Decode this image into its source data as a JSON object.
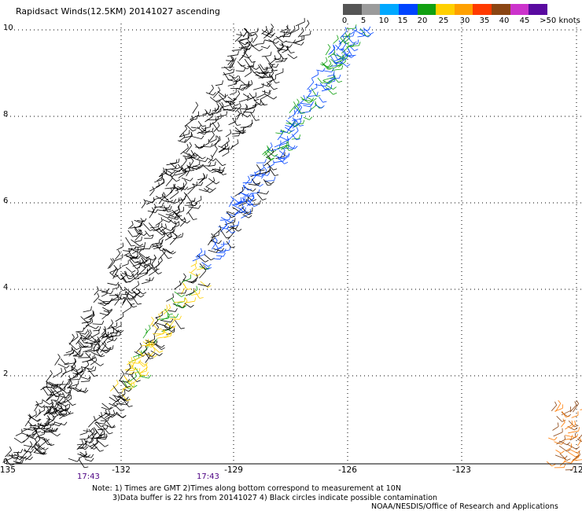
{
  "title": "Rapidsact Winds(12.5KM) 20141027 ascending",
  "colorbar": {
    "labels": [
      "0",
      "5",
      "10",
      "15",
      "20",
      "25",
      "30",
      "35",
      "40",
      "45",
      ">50 knots"
    ],
    "colors": [
      "#555555",
      "#9b9b9b",
      "#00a8ff",
      "#0044ff",
      "#11a011",
      "#ffd000",
      "#ffa000",
      "#ff3a00",
      "#8b4513",
      "#cc33cc",
      "#5a0aa0"
    ]
  },
  "axes": {
    "y_ticks": [
      "0",
      "2",
      "4",
      "6",
      "8",
      "10"
    ],
    "x_ticks": [
      "-135",
      "-132",
      "-129",
      "-126",
      "-123",
      "-12"
    ]
  },
  "times": [
    "17:43",
    "17:43"
  ],
  "notes": {
    "line1": "Note: 1) Times are GMT 2)Times along bottom correspond to measurement at 10N",
    "line2": "3)Data buffer is 22 hrs from 20141027 4) Black circles indicate possible contamination",
    "line3": "NOAA/NESDIS/Office of Research and Applications"
  }
}
